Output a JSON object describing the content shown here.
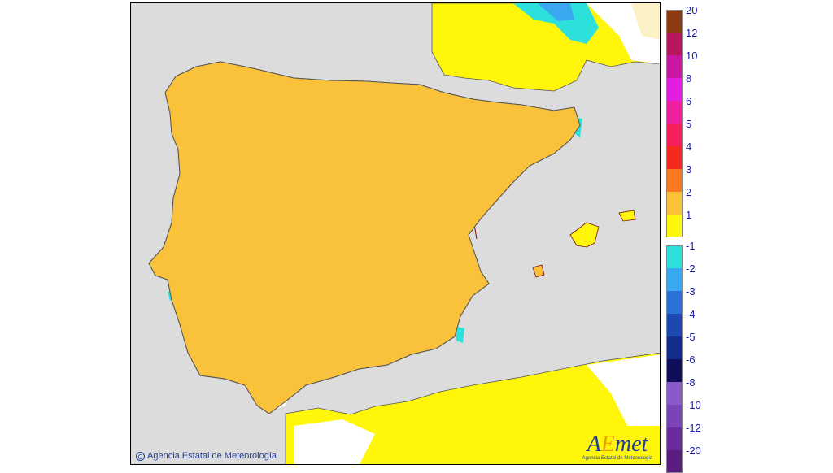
{
  "map": {
    "copyright_text": "Agencia Estatal de Meteorología",
    "copyright_symbol": "C",
    "logo": {
      "wordmark_a": "A",
      "wordmark_e": "E",
      "wordmark_rest": "met",
      "subtitle": "Agencia Estatal de Meteorología"
    },
    "colors": {
      "sea": "#dcdcdc",
      "land_neutral": "#ffffff",
      "border": "#7a1010",
      "coast": "#555555"
    }
  },
  "legend": {
    "items": [
      {
        "label": "20",
        "color": "#8b3a13"
      },
      {
        "label": "12",
        "color": "#b5185e"
      },
      {
        "label": "10",
        "color": "#c817a0"
      },
      {
        "label": "8",
        "color": "#e21ee0"
      },
      {
        "label": "6",
        "color": "#f01fa0"
      },
      {
        "label": "5",
        "color": "#f5205a"
      },
      {
        "label": "4",
        "color": "#f52a1e"
      },
      {
        "label": "3",
        "color": "#f77a22"
      },
      {
        "label": "2",
        "color": "#fac23a"
      },
      {
        "label": "1",
        "color": "#fff60a"
      },
      {
        "label": "-1",
        "color": "#2de0dc"
      },
      {
        "label": "-2",
        "color": "#3aa8f0"
      },
      {
        "label": "-3",
        "color": "#2a72d8"
      },
      {
        "label": "-4",
        "color": "#1d48b0"
      },
      {
        "label": "-5",
        "color": "#142c8a"
      },
      {
        "label": "-6",
        "color": "#0e0e5a"
      },
      {
        "label": "-8",
        "color": "#8a5ac8"
      },
      {
        "label": "-10",
        "color": "#7a44b8"
      },
      {
        "label": "-12",
        "color": "#6a2c9c"
      },
      {
        "label": "-20",
        "color": "#5a1e80"
      }
    ]
  }
}
